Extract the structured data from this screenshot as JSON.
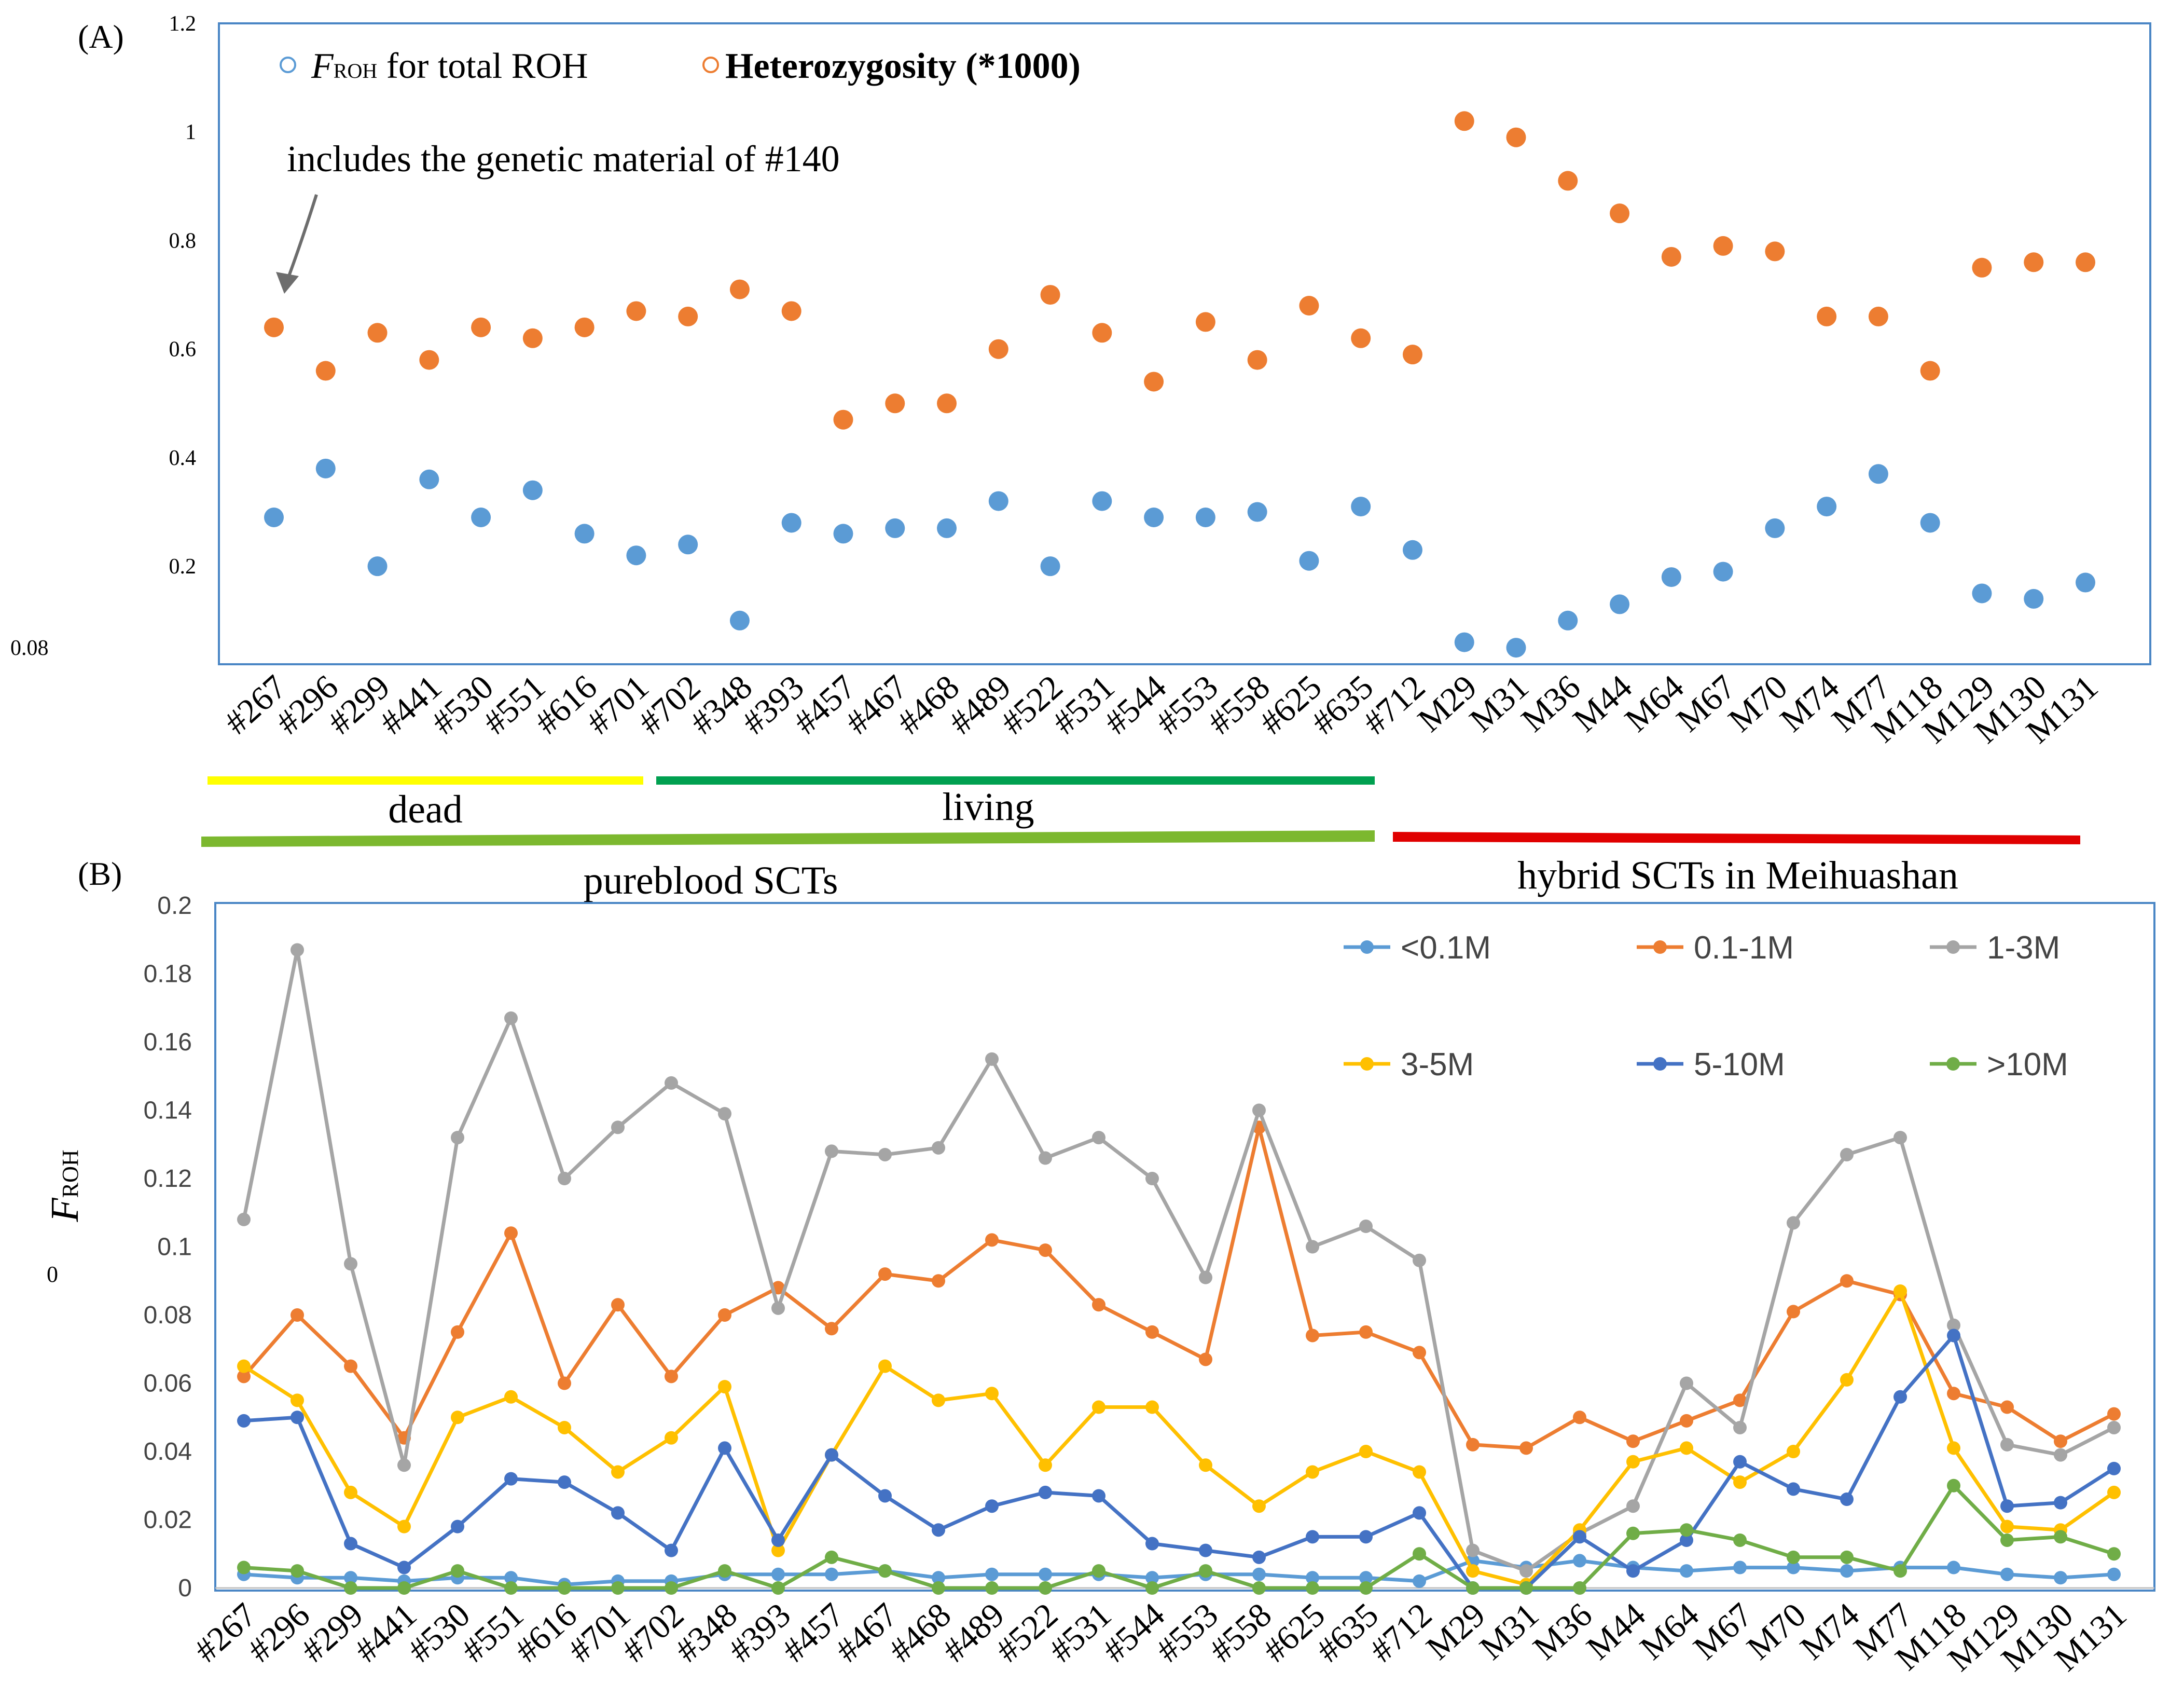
{
  "colors": {
    "frame": "#4a86c5",
    "froh_dot": "#5b9bd5",
    "het_dot": "#ed7d31",
    "lt01": "#5b9bd5",
    "m01_1": "#ed7d31",
    "m1_3": "#a5a5a5",
    "m3_5": "#ffc000",
    "m5_10": "#4472c4",
    "gt10": "#70ad47",
    "dead_bar": "#ffff00",
    "living_bar": "#00a050",
    "pure_bar": "#7cb82f",
    "hybrid_bar": "#e00000"
  },
  "panel_a": {
    "label": "(A)",
    "legend_froh_main": "F",
    "legend_froh_sub": "ROH",
    "legend_froh_rest": " for total ROH",
    "legend_het": "Heterozygosity (*1000)",
    "annotation": "includes the genetic material of #140",
    "stray_label": "0.08"
  },
  "panel_b": {
    "label": "(B)",
    "ylabel_main": "F",
    "ylabel_sub": "ROH",
    "stray_label": "0"
  },
  "groups": {
    "dead": "dead",
    "living": "living",
    "pureblood": "pureblood SCTs",
    "hybrid": "hybrid SCTs in Meihuashan"
  },
  "chart_data": [
    {
      "type": "scatter",
      "title": "",
      "categories": [
        "#267",
        "#296",
        "#299",
        "#441",
        "#530",
        "#551",
        "#616",
        "#701",
        "#702",
        "#348",
        "#393",
        "#457",
        "#467",
        "#468",
        "#489",
        "#522",
        "#531",
        "#544",
        "#553",
        "#558",
        "#625",
        "#635",
        "#712",
        "M29",
        "M31",
        "M36",
        "M44",
        "M64",
        "M67",
        "M70",
        "M74",
        "M77",
        "M118",
        "M129",
        "M130",
        "M131"
      ],
      "ylim": [
        0.03,
        1.2
      ],
      "yticks": [
        0.2,
        0.4,
        0.6,
        0.8,
        1,
        1.2
      ],
      "series": [
        {
          "name": "FROH for total ROH",
          "values": [
            0.29,
            0.38,
            0.2,
            0.36,
            0.29,
            0.34,
            0.26,
            0.22,
            0.24,
            0.1,
            0.28,
            0.26,
            0.27,
            0.27,
            0.32,
            0.2,
            0.32,
            0.29,
            0.29,
            0.3,
            0.21,
            0.31,
            0.23,
            0.06,
            0.05,
            0.1,
            0.13,
            0.18,
            0.19,
            0.27,
            0.31,
            0.37,
            0.28,
            0.15,
            0.14,
            0.17
          ]
        },
        {
          "name": "Heterozygosity (*1000)",
          "values": [
            0.64,
            0.56,
            0.63,
            0.58,
            0.64,
            0.62,
            0.64,
            0.67,
            0.66,
            0.71,
            0.67,
            0.47,
            0.5,
            0.5,
            0.6,
            0.7,
            0.63,
            0.54,
            0.65,
            0.58,
            0.68,
            0.62,
            0.59,
            1.02,
            0.99,
            0.91,
            0.85,
            0.77,
            0.79,
            0.78,
            0.66,
            0.66,
            0.56,
            0.75,
            0.76,
            0.76
          ]
        }
      ]
    },
    {
      "type": "line",
      "title": "",
      "ylabel": "FROH",
      "categories": [
        "#267",
        "#296",
        "#299",
        "#441",
        "#530",
        "#551",
        "#616",
        "#701",
        "#702",
        "#348",
        "#393",
        "#457",
        "#467",
        "#468",
        "#489",
        "#522",
        "#531",
        "#544",
        "#553",
        "#558",
        "#625",
        "#635",
        "#712",
        "M29",
        "M31",
        "M36",
        "M44",
        "M64",
        "M67",
        "M70",
        "M74",
        "M77",
        "M118",
        "M129",
        "M130",
        "M131"
      ],
      "ylim": [
        0,
        0.2
      ],
      "yticks": [
        0,
        0.02,
        0.04,
        0.06,
        0.08,
        0.1,
        0.12,
        0.14,
        0.16,
        0.18,
        0.2
      ],
      "legend_position": "top-right",
      "series": [
        {
          "name": "<0.1M",
          "values": [
            0.004,
            0.003,
            0.003,
            0.002,
            0.003,
            0.003,
            0.001,
            0.002,
            0.002,
            0.004,
            0.004,
            0.004,
            0.005,
            0.003,
            0.004,
            0.004,
            0.004,
            0.003,
            0.004,
            0.004,
            0.003,
            0.003,
            0.002,
            0.008,
            0.006,
            0.008,
            0.006,
            0.005,
            0.006,
            0.006,
            0.005,
            0.006,
            0.006,
            0.004,
            0.003,
            0.004
          ]
        },
        {
          "name": "0.1-1M",
          "values": [
            0.062,
            0.08,
            0.065,
            0.044,
            0.075,
            0.104,
            0.06,
            0.083,
            0.062,
            0.08,
            0.088,
            0.076,
            0.092,
            0.09,
            0.102,
            0.099,
            0.083,
            0.075,
            0.067,
            0.135,
            0.074,
            0.075,
            0.069,
            0.042,
            0.041,
            0.05,
            0.043,
            0.049,
            0.055,
            0.081,
            0.09,
            0.086,
            0.057,
            0.053,
            0.043,
            0.051
          ]
        },
        {
          "name": "1-3M",
          "values": [
            0.108,
            0.187,
            0.095,
            0.036,
            0.132,
            0.167,
            0.12,
            0.135,
            0.148,
            0.139,
            0.082,
            0.128,
            0.127,
            0.129,
            0.155,
            0.126,
            0.132,
            0.12,
            0.091,
            0.14,
            0.1,
            0.106,
            0.096,
            0.011,
            0.005,
            0.016,
            0.024,
            0.06,
            0.047,
            0.107,
            0.127,
            0.132,
            0.077,
            0.042,
            0.039,
            0.047
          ]
        },
        {
          "name": "3-5M",
          "values": [
            0.065,
            0.055,
            0.028,
            0.018,
            0.05,
            0.056,
            0.047,
            0.034,
            0.044,
            0.059,
            0.011,
            0.039,
            0.065,
            0.055,
            0.057,
            0.036,
            0.053,
            0.053,
            0.036,
            0.024,
            0.034,
            0.04,
            0.034,
            0.005,
            0.001,
            0.017,
            0.037,
            0.041,
            0.031,
            0.04,
            0.061,
            0.087,
            0.041,
            0.018,
            0.017,
            0.028
          ]
        },
        {
          "name": "5-10M",
          "values": [
            0.049,
            0.05,
            0.013,
            0.006,
            0.018,
            0.032,
            0.031,
            0.022,
            0.011,
            0.041,
            0.014,
            0.039,
            0.027,
            0.017,
            0.024,
            0.028,
            0.027,
            0.013,
            0.011,
            0.009,
            0.015,
            0.015,
            0.022,
            0.0,
            0.0,
            0.015,
            0.005,
            0.014,
            0.037,
            0.029,
            0.026,
            0.056,
            0.074,
            0.024,
            0.025,
            0.035
          ]
        },
        {
          "name": ">10M",
          "values": [
            0.006,
            0.005,
            0.0,
            0.0,
            0.005,
            0.0,
            0.0,
            0.0,
            0.0,
            0.005,
            0.0,
            0.009,
            0.005,
            0.0,
            0.0,
            0.0,
            0.005,
            0.0,
            0.005,
            0.0,
            0.0,
            0.0,
            0.01,
            0.0,
            0.0,
            0.0,
            0.016,
            0.017,
            0.014,
            0.009,
            0.009,
            0.005,
            0.03,
            0.014,
            0.015,
            0.01
          ]
        }
      ]
    }
  ]
}
